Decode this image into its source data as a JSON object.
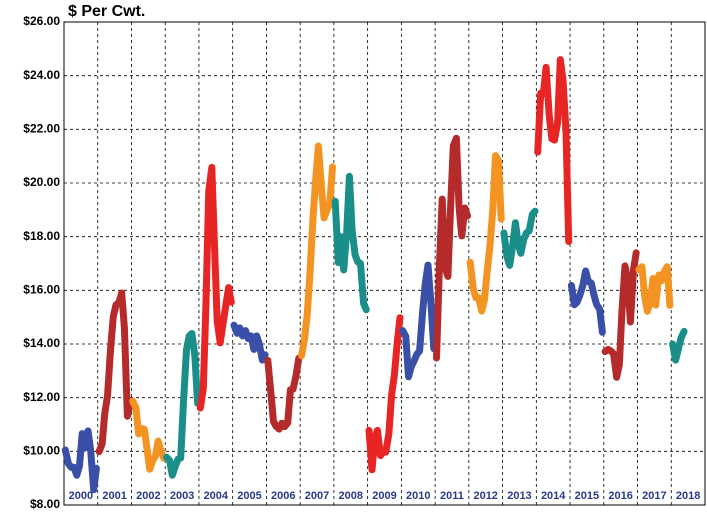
{
  "chart_data": {
    "type": "line",
    "title": "$ Per Cwt.",
    "categories": [
      "2000",
      "2001",
      "2002",
      "2003",
      "2004",
      "2005",
      "2006",
      "2007",
      "2008",
      "2009",
      "2010",
      "2011",
      "2012",
      "2013",
      "2014",
      "2015",
      "2016",
      "2017",
      "2018"
    ],
    "xlim": [
      2000,
      2019
    ],
    "xticks": [
      2000,
      2001,
      2002,
      2003,
      2004,
      2005,
      2006,
      2007,
      2008,
      2009,
      2010,
      2011,
      2012,
      2013,
      2014,
      2015,
      2016,
      2017,
      2018,
      2019
    ],
    "ylim": [
      8,
      26
    ],
    "yticks": [
      {
        "value": 8,
        "label": "$8.00"
      },
      {
        "value": 10,
        "label": "$10.00"
      },
      {
        "value": 12,
        "label": "$12.00"
      },
      {
        "value": 14,
        "label": "$14.00"
      },
      {
        "value": 16,
        "label": "$16.00"
      },
      {
        "value": 18,
        "label": "$18.00"
      },
      {
        "value": 20,
        "label": "$20.00"
      },
      {
        "value": 22,
        "label": "$22.00"
      },
      {
        "value": 24,
        "label": "$24.00"
      },
      {
        "value": 26,
        "label": "$26.00"
      }
    ],
    "grid": true,
    "series": [
      {
        "color": "#3a4fa8",
        "x": [
          2000.04,
          2000.13,
          2000.21,
          2000.29,
          2000.38,
          2000.46,
          2000.54,
          2000.63,
          2000.71,
          2000.79,
          2000.88,
          2000.96
        ],
        "values": [
          10.05,
          9.54,
          9.41,
          9.41,
          9.11,
          9.46,
          10.66,
          10.13,
          10.76,
          10.02,
          8.57,
          9.37
        ]
      },
      {
        "color": "#b52a2a",
        "x": [
          2001.04,
          2001.13,
          2001.21,
          2001.29,
          2001.38,
          2001.46,
          2001.54,
          2001.63,
          2001.71,
          2001.79,
          2001.88,
          2001.96
        ],
        "values": [
          9.99,
          10.27,
          11.42,
          12.06,
          13.83,
          15.02,
          15.46,
          15.55,
          15.9,
          14.6,
          11.31,
          11.8
        ]
      },
      {
        "color": "#f39422",
        "x": [
          2002.04,
          2002.13,
          2002.21,
          2002.29,
          2002.38,
          2002.46,
          2002.54,
          2002.63,
          2002.71,
          2002.79,
          2002.88,
          2002.96
        ],
        "values": [
          11.87,
          11.63,
          10.65,
          10.85,
          10.82,
          10.09,
          9.33,
          9.66,
          9.82,
          10.38,
          9.99,
          9.74
        ]
      },
      {
        "color": "#1a8f8a",
        "x": [
          2003.04,
          2003.13,
          2003.21,
          2003.29,
          2003.38,
          2003.46,
          2003.54,
          2003.63,
          2003.71,
          2003.79,
          2003.88,
          2003.96
        ],
        "values": [
          9.78,
          9.66,
          9.11,
          9.41,
          9.71,
          9.75,
          11.78,
          13.8,
          14.3,
          14.39,
          13.54,
          11.79
        ]
      },
      {
        "color": "#e82525",
        "x": [
          2004.04,
          2004.13,
          2004.21,
          2004.29,
          2004.38,
          2004.46,
          2004.54,
          2004.63,
          2004.71,
          2004.79,
          2004.88,
          2004.96
        ],
        "values": [
          11.61,
          12.35,
          15.55,
          19.66,
          20.58,
          17.68,
          14.85,
          14.04,
          14.72,
          15.39,
          16.1,
          15.56
        ]
      },
      {
        "color": "#3a4fa8",
        "x": [
          2005.04,
          2005.13,
          2005.21,
          2005.29,
          2005.38,
          2005.46,
          2005.54,
          2005.63,
          2005.71,
          2005.79,
          2005.88,
          2005.96
        ],
        "values": [
          14.7,
          14.4,
          14.6,
          14.3,
          14.5,
          14.2,
          14.3,
          13.8,
          14.3,
          14.0,
          13.4,
          13.6
        ]
      },
      {
        "color": "#b52a2a",
        "x": [
          2006.04,
          2006.13,
          2006.21,
          2006.29,
          2006.38,
          2006.46,
          2006.54,
          2006.63,
          2006.71,
          2006.79,
          2006.88,
          2006.96
        ],
        "values": [
          13.39,
          12.2,
          11.11,
          10.93,
          10.83,
          11.05,
          10.92,
          11.06,
          12.29,
          12.32,
          12.84,
          13.47
        ]
      },
      {
        "color": "#f39422",
        "x": [
          2007.04,
          2007.13,
          2007.21,
          2007.29,
          2007.38,
          2007.46,
          2007.54,
          2007.63,
          2007.71,
          2007.79,
          2007.88,
          2007.96
        ],
        "values": [
          13.56,
          14.18,
          15.09,
          16.6,
          18.7,
          20.13,
          21.38,
          19.86,
          18.7,
          18.97,
          19.22,
          20.6
        ]
      },
      {
        "color": "#1a8f8a",
        "x": [
          2008.04,
          2008.13,
          2008.21,
          2008.29,
          2008.38,
          2008.46,
          2008.54,
          2008.63,
          2008.71,
          2008.79,
          2008.88,
          2008.96
        ],
        "values": [
          19.32,
          17.03,
          18.0,
          16.76,
          18.18,
          20.25,
          18.24,
          17.32,
          17.06,
          17.0,
          15.51,
          15.28
        ]
      },
      {
        "color": "#e82525",
        "x": [
          2009.04,
          2009.13,
          2009.21,
          2009.29,
          2009.38,
          2009.46,
          2009.54,
          2009.63,
          2009.71,
          2009.79,
          2009.88,
          2009.96
        ],
        "values": [
          10.78,
          9.31,
          10.44,
          10.78,
          9.84,
          9.97,
          9.97,
          10.67,
          12.11,
          12.82,
          14.08,
          14.98
        ]
      },
      {
        "color": "#3a4fa8",
        "x": [
          2010.04,
          2010.13,
          2010.21,
          2010.29,
          2010.38,
          2010.46,
          2010.54,
          2010.63,
          2010.71,
          2010.79,
          2010.88,
          2010.96
        ],
        "values": [
          14.5,
          14.28,
          12.78,
          13.15,
          13.38,
          13.62,
          13.74,
          15.18,
          16.26,
          16.94,
          15.44,
          13.83
        ]
      },
      {
        "color": "#b52a2a",
        "x": [
          2011.04,
          2011.13,
          2011.21,
          2011.29,
          2011.38,
          2011.46,
          2011.54,
          2011.63,
          2011.71,
          2011.79,
          2011.88,
          2011.96
        ],
        "values": [
          13.48,
          17.0,
          19.4,
          16.87,
          16.52,
          19.11,
          21.39,
          21.67,
          19.07,
          18.03,
          19.07,
          18.77
        ]
      },
      {
        "color": "#f39422",
        "x": [
          2012.04,
          2012.13,
          2012.21,
          2012.29,
          2012.38,
          2012.46,
          2012.54,
          2012.63,
          2012.71,
          2012.79,
          2012.88,
          2012.96
        ],
        "values": [
          17.05,
          16.06,
          15.72,
          15.72,
          15.23,
          15.63,
          16.68,
          17.73,
          19.0,
          21.02,
          20.83,
          18.66
        ]
      },
      {
        "color": "#1a8f8a",
        "x": [
          2013.04,
          2013.13,
          2013.21,
          2013.29,
          2013.38,
          2013.46,
          2013.54,
          2013.63,
          2013.71,
          2013.79,
          2013.88,
          2013.96
        ],
        "values": [
          18.14,
          17.25,
          16.93,
          17.59,
          18.52,
          17.76,
          17.38,
          17.91,
          18.14,
          18.22,
          18.83,
          18.95
        ]
      },
      {
        "color": "#e82525",
        "x": [
          2014.04,
          2014.13,
          2014.21,
          2014.29,
          2014.38,
          2014.46,
          2014.54,
          2014.63,
          2014.71,
          2014.79,
          2014.88,
          2014.96
        ],
        "values": [
          21.15,
          23.35,
          23.33,
          24.31,
          22.57,
          21.65,
          21.6,
          22.25,
          24.6,
          23.82,
          21.94,
          17.82
        ]
      },
      {
        "color": "#3a4fa8",
        "x": [
          2015.04,
          2015.13,
          2015.21,
          2015.29,
          2015.38,
          2015.46,
          2015.54,
          2015.63,
          2015.71,
          2015.79,
          2015.88,
          2015.96
        ],
        "values": [
          16.18,
          15.46,
          15.56,
          15.81,
          16.19,
          16.72,
          16.33,
          16.27,
          15.82,
          15.46,
          15.3,
          14.44
        ]
      },
      {
        "color": "#b52a2a",
        "x": [
          2016.04,
          2016.13,
          2016.21,
          2016.29,
          2016.38,
          2016.46,
          2016.54,
          2016.63,
          2016.71,
          2016.79,
          2016.88,
          2016.96
        ],
        "values": [
          13.72,
          13.8,
          13.74,
          13.63,
          12.76,
          13.22,
          15.24,
          16.91,
          16.39,
          14.82,
          16.76,
          17.4
        ]
      },
      {
        "color": "#f39422",
        "x": [
          2017.04,
          2017.13,
          2017.21,
          2017.29,
          2017.38,
          2017.46,
          2017.54,
          2017.63,
          2017.71,
          2017.79,
          2017.88,
          2017.96
        ],
        "values": [
          16.77,
          16.88,
          15.81,
          15.22,
          15.57,
          16.44,
          15.45,
          16.57,
          16.36,
          16.69,
          16.88,
          15.44
        ]
      },
      {
        "color": "#1a8f8a",
        "x": [
          2018.04,
          2018.13,
          2018.21,
          2018.29,
          2018.38
        ],
        "values": [
          14.0,
          13.4,
          13.8,
          14.22,
          14.47
        ]
      }
    ]
  }
}
